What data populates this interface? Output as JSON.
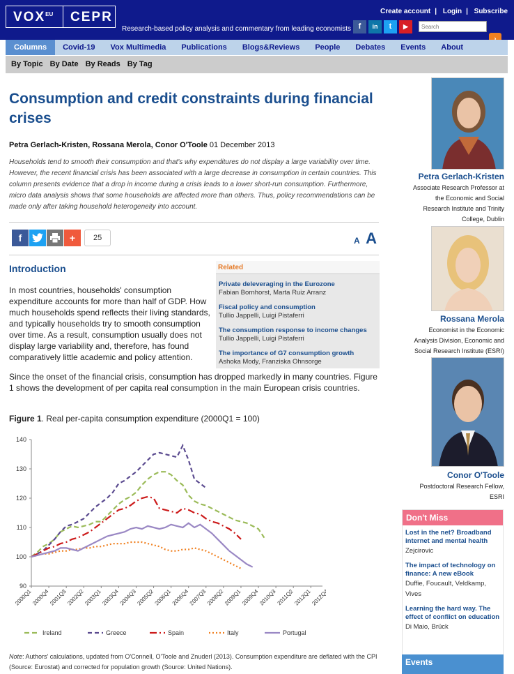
{
  "header": {
    "logo_vox": "VOX",
    "logo_sup": "EU",
    "logo_cepr": "CEPR",
    "tagline": "Research-based policy analysis and commentary from leading economists",
    "links": [
      "Create account",
      "Login",
      "Subscribe"
    ],
    "search_placeholder": "Search",
    "social": [
      "f",
      "in",
      "t",
      "▶"
    ]
  },
  "nav": {
    "items": [
      "Columns",
      "Covid-19",
      "Vox Multimedia",
      "Publications",
      "Blogs&Reviews",
      "People",
      "Debates",
      "Events",
      "About"
    ],
    "active": "Columns"
  },
  "subnav": [
    "By Topic",
    "By Date",
    "By Reads",
    "By Tag"
  ],
  "article": {
    "title": "Consumption and credit constraints during financial crises",
    "authors": "Petra Gerlach-Kristen, Rossana Merola, Conor O'Toole",
    "date": "01 December 2013",
    "abstract": "Households tend to smooth their consumption and that's why expenditures do not display a large variability over time. However, the recent financial crisis has been associated with a large decrease in consumption in certain countries. This column presents evidence that a drop in income during a crisis leads to a lower short-run consumption. Furthermore, micro data analysis shows that some households are affected more than others. Thus, policy recommendations can be made only after taking household heterogeneity into account.",
    "share_count": "25",
    "font_small": "A",
    "font_large": "A",
    "intro_heading": "Introduction",
    "p1": "In most countries, households' consumption expenditure accounts for more than half of GDP. How much households spend reflects their living standards, and typically households try to smooth consumption over time. As a result, consumption usually does not display large variability and, therefore, has found comparatively little academic and policy attention.",
    "p2": "Since the onset of the financial crisis, consumption has dropped markedly in many countries. Figure 1 shows the development of per capita real consumption in the main European crisis countries.",
    "fig_label": "Figure 1",
    "fig_title": ". Real per-capita consumption expenditure (2000Q1 = 100)",
    "note_label": "Note",
    "note_text": ": Authors' calculations, updated from O'Connell, O'Toole and Znuderl (2013). Consumption expenditure are deflated with the CPI (Source: Eurostat) and corrected for population growth (Source: United Nations)."
  },
  "related": {
    "heading": "Related",
    "items": [
      {
        "title": "Private deleveraging in the Eurozone",
        "authors": "Fabian Bornhorst, Marta Ruiz Arranz"
      },
      {
        "title": "Fiscal policy and consumption",
        "authors": "Tullio Jappelli, Luigi Pistaferri"
      },
      {
        "title": "The consumption response to income changes",
        "authors": "Tullio Jappelli, Luigi Pistaferri"
      },
      {
        "title": "The importance of G7 consumption growth",
        "authors": "Ashoka Mody, Franziska Ohnsorge"
      }
    ]
  },
  "authors": [
    {
      "name": "Petra Gerlach-Kristen",
      "desc": [
        "Associate Research Professor at",
        "the Economic and Social",
        "Research Institute and Trinity",
        "College, Dublin"
      ]
    },
    {
      "name": "Rossana Merola",
      "desc": [
        "Economist in the Economic",
        "Analysis Division, Economic and",
        "Social Research Institute (ESRI)"
      ]
    },
    {
      "name": "Conor O'Toole",
      "desc": [
        "Postdoctoral Research Fellow,",
        "ESRI"
      ]
    }
  ],
  "dont_miss": {
    "heading": "Don't Miss",
    "items": [
      {
        "title": "Lost in the net? Broadband internet and mental health",
        "authors": "Zejcirovic"
      },
      {
        "title": "The impact of technology on finance: A new eBook",
        "authors": "Duffie, Foucault, Veldkamp, Vives"
      },
      {
        "title": "Learning the hard way. The effect of conflict on education",
        "authors": "Di Maio, Brück"
      }
    ]
  },
  "events_heading": "Events",
  "chart_data": {
    "type": "line",
    "title": "",
    "xlabel": "",
    "ylabel": "",
    "ylim": [
      90,
      140
    ],
    "yticks": [
      90,
      100,
      110,
      120,
      130,
      140
    ],
    "x_ticklabels": [
      "2000Q1",
      "2000Q4",
      "2001Q3",
      "2002Q2",
      "2003Q1",
      "2003Q4",
      "2004Q3",
      "2005Q2",
      "2006Q1",
      "2006Q4",
      "2007Q3",
      "2008Q2",
      "2009Q1",
      "2009Q4",
      "2010Q3",
      "2011Q2",
      "2012Q1",
      "2012Q4"
    ],
    "legend_position": "bottom",
    "series": [
      {
        "name": "Ireland",
        "color": "#9bbb59",
        "dash": "7,4",
        "values": [
          100,
          101.5,
          103.5,
          104.5,
          106,
          108.5,
          109.5,
          110.5,
          110,
          110.5,
          111,
          112,
          112,
          114,
          116,
          118,
          119.5,
          120.5,
          122,
          124.5,
          126.5,
          128,
          129,
          129,
          128,
          126,
          124.5,
          121,
          119,
          118,
          117.5,
          116.5,
          115.5,
          114.5,
          113.5,
          112.5,
          112,
          111.5,
          110.5,
          109.5,
          106.5
        ]
      },
      {
        "name": "Greece",
        "color": "#5a4a8f",
        "dash": "6,4",
        "values": [
          100,
          101,
          102,
          104,
          106,
          108.5,
          110.5,
          111,
          112,
          113,
          115,
          117,
          118.5,
          120,
          122,
          125,
          126,
          127.5,
          129,
          131,
          133,
          135,
          135.5,
          135,
          134.5,
          134,
          138,
          133,
          126.5,
          125,
          123.5
        ]
      },
      {
        "name": "Spain",
        "color": "#cc1a1a",
        "dash": "10,4,2,4",
        "values": [
          100,
          101,
          102,
          103,
          103.5,
          104.5,
          105,
          106,
          106.5,
          107.5,
          108.5,
          110,
          111.5,
          113,
          114.5,
          116,
          116.5,
          117.5,
          119,
          120,
          120.5,
          120,
          116.5,
          116,
          115.5,
          115,
          116.5,
          116,
          115,
          114.5,
          113,
          112,
          111.5,
          110.5,
          109.5,
          108,
          106
        ]
      },
      {
        "name": "Italy",
        "color": "#f08020",
        "dash": "2,3",
        "values": [
          100,
          100.5,
          101,
          101,
          101.5,
          102,
          102,
          102.5,
          102.5,
          103,
          103,
          103.5,
          103.5,
          104,
          104.5,
          104.5,
          104.5,
          105,
          105,
          105,
          104.5,
          104,
          103.5,
          102.5,
          102,
          102,
          102.5,
          102.5,
          103,
          102.5,
          102,
          101,
          100,
          99,
          98,
          97,
          96
        ]
      },
      {
        "name": "Portugal",
        "color": "#9a88c4",
        "dash": "",
        "values": [
          100,
          100.5,
          101,
          101.5,
          102,
          103,
          103,
          102.5,
          102,
          103,
          104,
          105,
          106,
          107,
          107.5,
          108,
          108.5,
          109.5,
          110,
          109.5,
          110.5,
          110,
          109.5,
          110,
          111,
          110.5,
          110,
          111.5,
          110,
          111,
          109.5,
          108,
          106,
          104,
          102,
          100.5,
          99,
          97.5,
          96.5
        ]
      }
    ]
  }
}
